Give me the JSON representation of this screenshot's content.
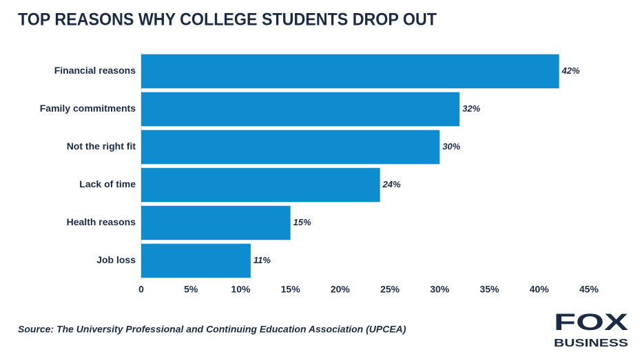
{
  "chart_data": {
    "type": "hbar",
    "title": "TOP REASONS WHY COLLEGE STUDENTS DROP OUT",
    "categories": [
      "Financial reasons",
      "Family commitments",
      "Not the right fit",
      "Lack of time",
      "Health reasons",
      "Job loss"
    ],
    "values": [
      42,
      32,
      30,
      24,
      15,
      11
    ],
    "value_labels": [
      "42%",
      "32%",
      "30%",
      "24%",
      "15%",
      "11%"
    ],
    "color": "#0f8ccf",
    "xlim": [
      0,
      45
    ],
    "xticks": [
      0,
      {
        "value": 5,
        "label": "5%"
      },
      {
        "value": 10,
        "label": "10%"
      },
      {
        "value": 15,
        "label": "15%"
      },
      {
        "value": 20,
        "label": "20%"
      },
      {
        "value": 25,
        "label": "25%"
      },
      {
        "value": 30,
        "label": "30%"
      },
      {
        "value": 35,
        "label": "35%"
      },
      {
        "value": 40,
        "label": "40%"
      },
      {
        "value": 45,
        "label": "45%"
      }
    ],
    "grid": false,
    "source": "Source: The University Professional and Continuing Education Association (UPCEA)",
    "logo": {
      "line1": "FOX",
      "line2": "BUSINESS"
    }
  }
}
